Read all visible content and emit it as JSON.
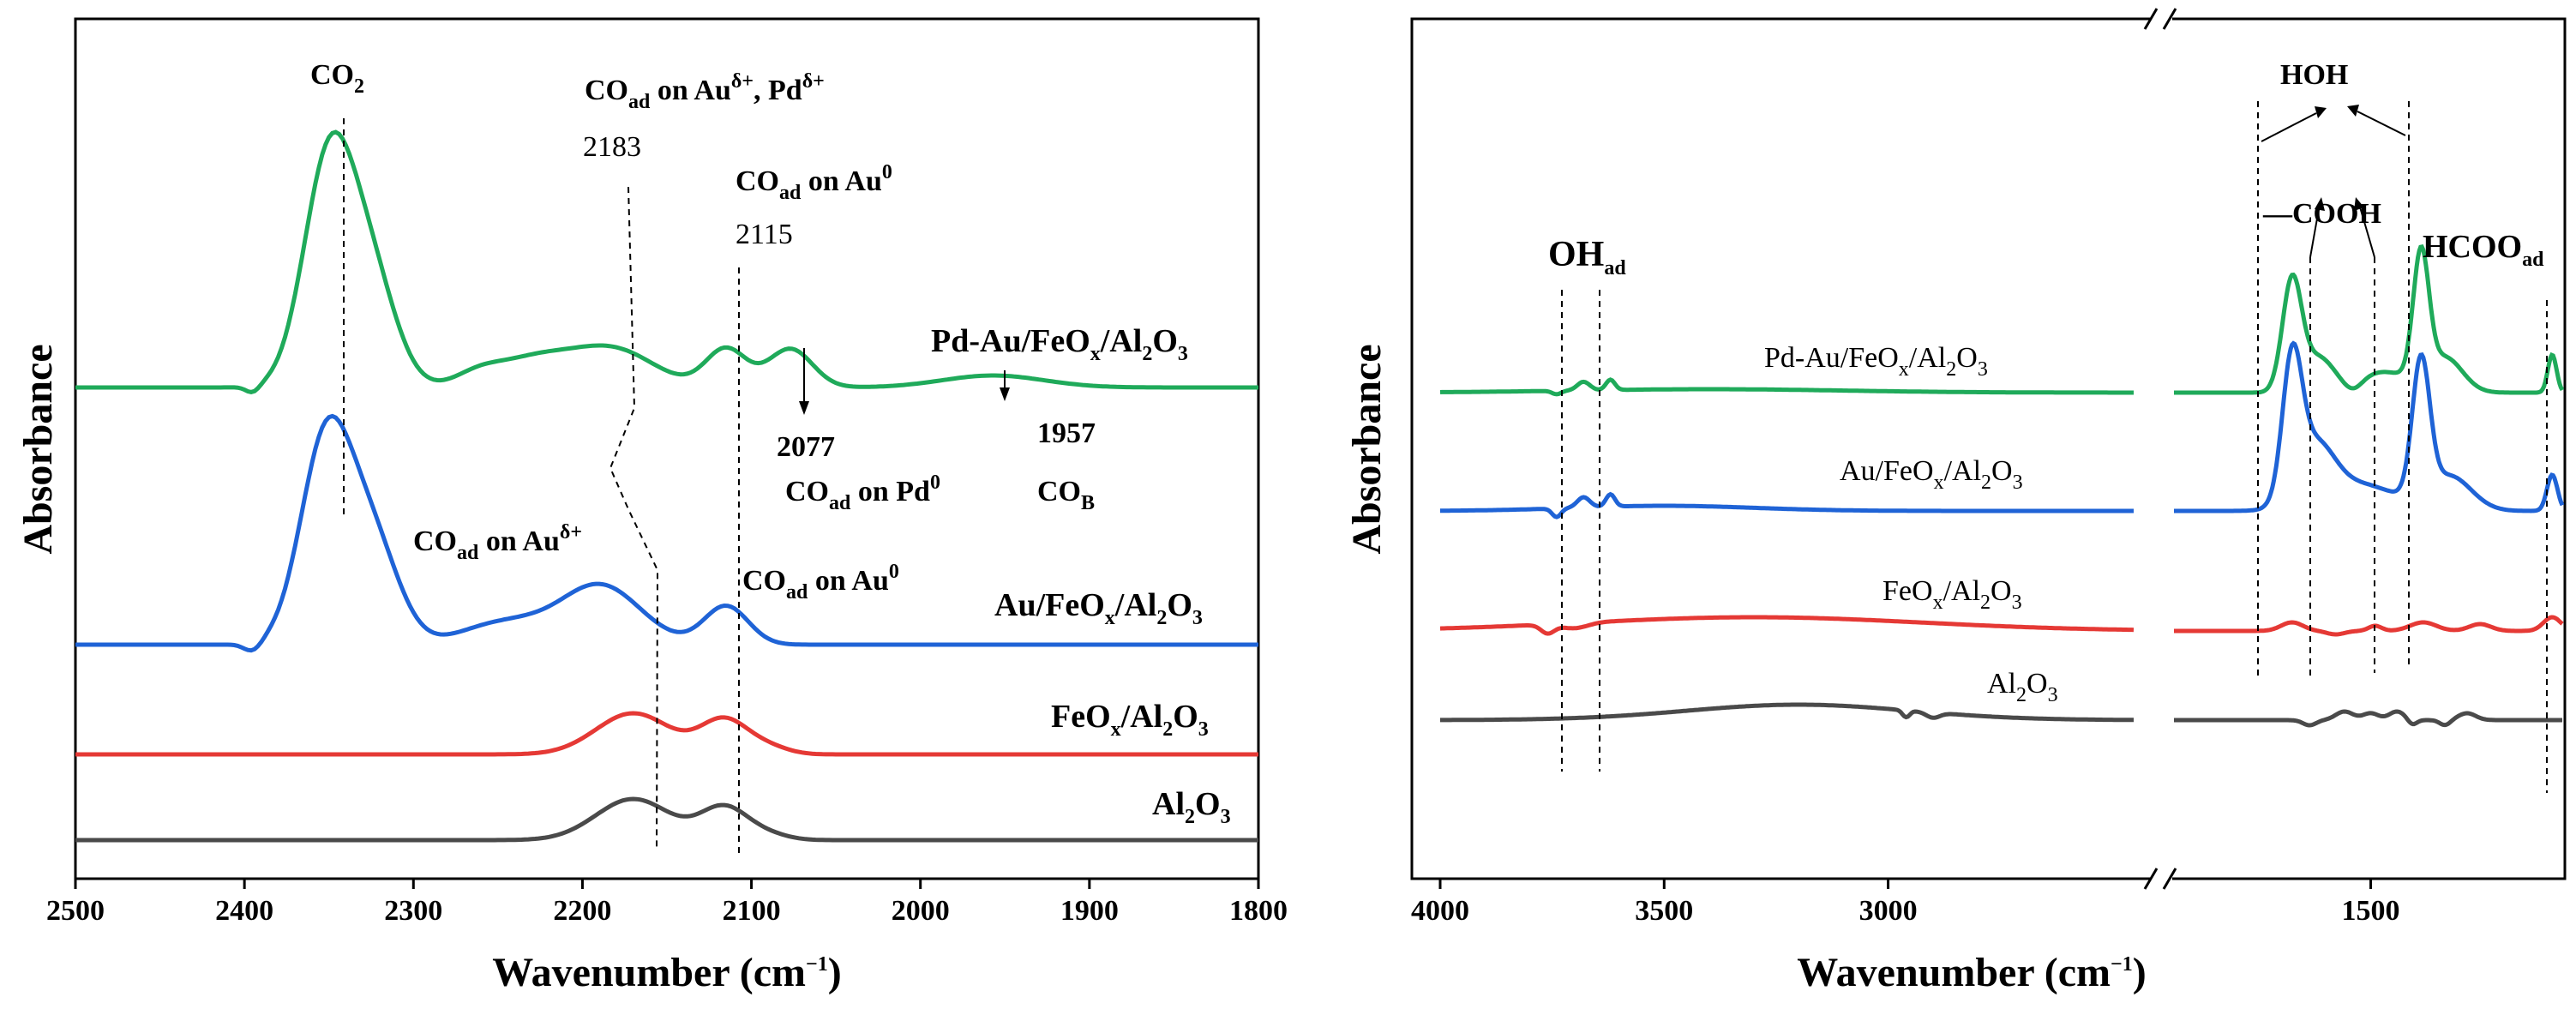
{
  "chart_data": [
    {
      "type": "line",
      "panel": "left",
      "xlabel": "Wavenumber (cm⁻¹)",
      "ylabel": "Absorbance",
      "xlim": [
        2500,
        1800
      ],
      "xticks": [
        "2500",
        "2400",
        "2300",
        "2200",
        "2100",
        "2000",
        "1900",
        "1800"
      ],
      "series": [
        {
          "name": "Pd-Au/FeOx/Al2O3",
          "color": "#1faa5a",
          "peaks": [
            2350,
            2183,
            2115,
            2077,
            1957
          ]
        },
        {
          "name": "Au/FeOx/Al2O3",
          "color": "#1f63d6",
          "peaks": [
            2350,
            2190,
            2115
          ]
        },
        {
          "name": "FeOx/Al2O3",
          "color": "#e53935",
          "peaks": [
            2170,
            2115
          ]
        },
        {
          "name": "Al2O3",
          "color": "#4a4a4a",
          "peaks": [
            2170,
            2115
          ]
        }
      ],
      "annotations": {
        "co2": "CO",
        "co2_sub": "2",
        "au_pd_main": "CO",
        "au_pd_sub": "ad",
        "au_pd_mid": " on Au",
        "au_pd_sup": "δ+",
        "au_pd_tail": ",  Pd",
        "au_pd_sup2": "δ+",
        "v2183": "2183",
        "au0_main": "CO",
        "au0_sub": "ad",
        "au0_mid": " on Au",
        "au0_sup": "0",
        "v2115": "2115",
        "v2077": "2077",
        "pd0_main": "CO",
        "pd0_sub": "ad",
        "pd0_mid": " on Pd",
        "pd0_sup": "0",
        "v1957": "1957",
        "cob_main": "CO",
        "cob_sub": "B",
        "blue_au_main": "CO",
        "blue_au_sub": "ad",
        "blue_au_mid": " on Au",
        "blue_au_sup": "δ+",
        "blue_au0_main": "CO",
        "blue_au0_sub": "ad",
        "blue_au0_mid": " on Au",
        "blue_au0_sup": "0"
      }
    },
    {
      "type": "line",
      "panel": "right",
      "xlabel": "Wavenumber (cm⁻¹)",
      "ylabel": "Absorbance",
      "xticks": [
        "4000",
        "3500",
        "3000",
        "1500"
      ],
      "axis_break": true,
      "series": [
        {
          "name": "Pd-Au/FeOx/Al2O3",
          "color": "#1faa5a"
        },
        {
          "name": "Au/FeOx/Al2O3",
          "color": "#1f63d6"
        },
        {
          "name": "FeOx/Al2O3",
          "color": "#e53935"
        },
        {
          "name": "Al2O3",
          "color": "#4a4a4a"
        }
      ],
      "annotations": {
        "oh_main": "OH",
        "oh_sub": "ad",
        "hoh": "HOH",
        "cooh": "—COOH",
        "hcoo_main": "HCOO",
        "hcoo_sub": "ad"
      }
    }
  ],
  "legend": {
    "pdau": {
      "a": "Pd-Au/FeO",
      "b": "x",
      "c": "/Al",
      "d": "2",
      "e": "O",
      "f": "3"
    },
    "au": {
      "a": "Au/FeO",
      "b": "x",
      "c": "/Al",
      "d": "2",
      "e": "O",
      "f": "3"
    },
    "feox": {
      "a": "FeO",
      "b": "x",
      "c": "/Al",
      "d": "2",
      "e": "O",
      "f": "3"
    },
    "al2o3": {
      "a": "Al",
      "b": "2",
      "c": "O",
      "d": "3"
    }
  },
  "axis_text": {
    "ylabel": "Absorbance",
    "xlabel_main": "Wavenumber (cm",
    "xlabel_sup": "−1",
    "xlabel_close": ")"
  }
}
